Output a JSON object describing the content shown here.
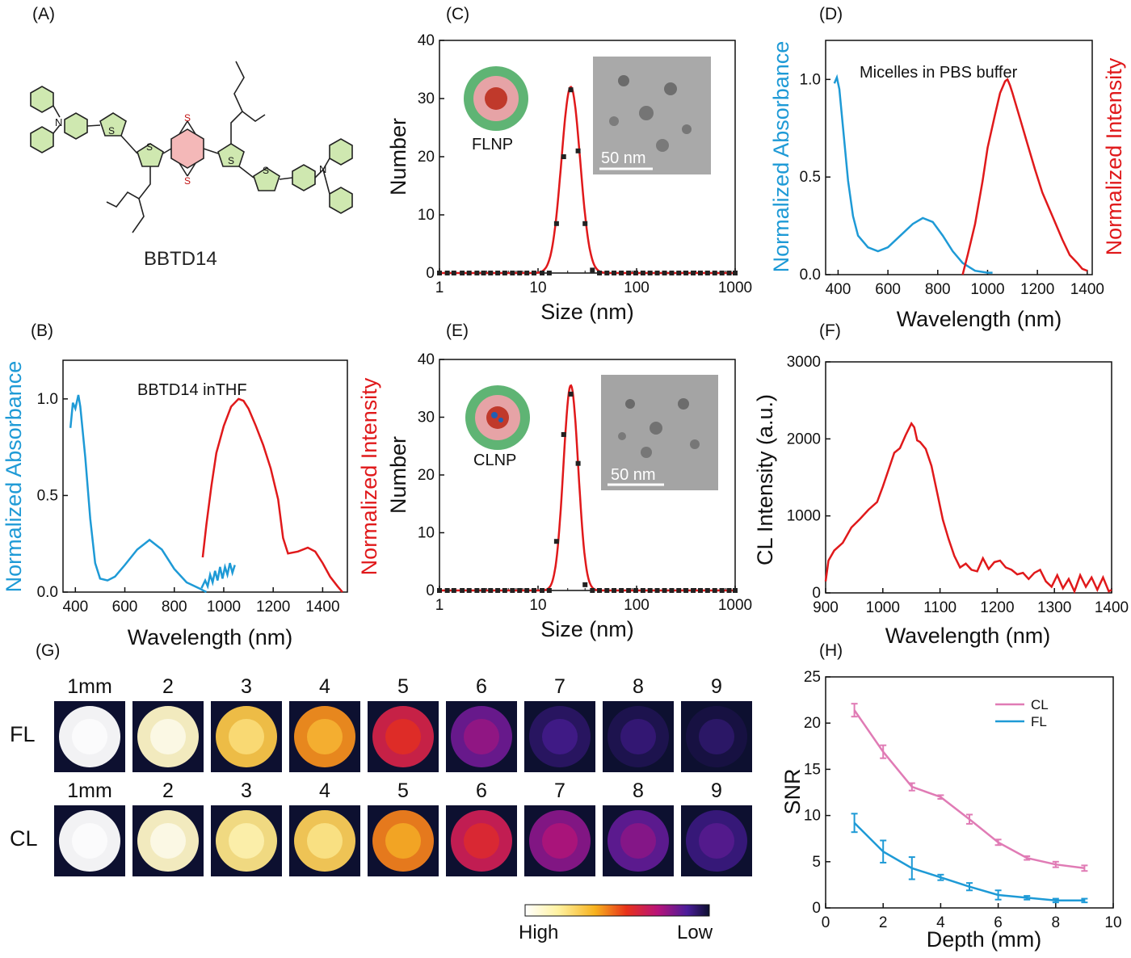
{
  "panel_labels": {
    "a": "(A)",
    "b": "(B)",
    "c": "(C)",
    "d": "(D)",
    "e": "(E)",
    "f": "(F)",
    "g": "(G)",
    "h": "(H)"
  },
  "molecule": {
    "name": "BBTD14",
    "atoms": {
      "N": "N",
      "S": "S"
    }
  },
  "colors": {
    "absorbance": "#1e9ad6",
    "emission": "#e0191b",
    "cl": "#e07bb5",
    "fl": "#1e9ad6",
    "dls_points": "#222222"
  },
  "chart_data": [
    {
      "id": "B",
      "type": "line",
      "title": "BBTD14 inTHF",
      "xlabel": "Wavelength (nm)",
      "ylabel_left": "Normalized Absorbance",
      "ylabel_right": "Normalized Intensity",
      "xlim": [
        350,
        1500
      ],
      "ylim": [
        0,
        1.2
      ],
      "xticks": [
        "400",
        "600",
        "800",
        "1000",
        "1200",
        "1400"
      ],
      "yticks": [
        "0.0",
        "0.5",
        "1.0"
      ],
      "series": [
        {
          "role": "absorbance",
          "x": [
            380,
            390,
            400,
            412,
            420,
            440,
            460,
            480,
            500,
            530,
            560,
            600,
            650,
            700,
            750,
            800,
            850,
            900,
            930
          ],
          "y": [
            0.85,
            0.98,
            0.95,
            1.02,
            0.96,
            0.7,
            0.38,
            0.15,
            0.07,
            0.06,
            0.08,
            0.14,
            0.22,
            0.27,
            0.22,
            0.12,
            0.05,
            0.02,
            0.0
          ]
        },
        {
          "role": "absorbance-noise",
          "x": [
            910,
            925,
            935,
            945,
            955,
            965,
            975,
            985,
            995,
            1005,
            1015,
            1025,
            1035,
            1045
          ],
          "y": [
            0.02,
            0.06,
            0.03,
            0.09,
            0.05,
            0.11,
            0.06,
            0.13,
            0.07,
            0.13,
            0.09,
            0.15,
            0.1,
            0.14
          ]
        },
        {
          "role": "emission",
          "x": [
            915,
            930,
            950,
            970,
            1000,
            1030,
            1060,
            1080,
            1100,
            1130,
            1160,
            1190,
            1220,
            1240,
            1260,
            1300,
            1340,
            1370,
            1400,
            1430,
            1460,
            1480
          ],
          "y": [
            0.18,
            0.35,
            0.55,
            0.72,
            0.86,
            0.96,
            1.0,
            0.99,
            0.95,
            0.86,
            0.76,
            0.64,
            0.48,
            0.28,
            0.2,
            0.21,
            0.23,
            0.21,
            0.15,
            0.08,
            0.03,
            0.0
          ]
        }
      ]
    },
    {
      "id": "C",
      "type": "scatter",
      "xlabel": "Size (nm)",
      "ylabel": "Number",
      "xscale": "log",
      "xlim": [
        1,
        1000
      ],
      "ylim": [
        0,
        40
      ],
      "xticks": [
        "1",
        "10",
        "100",
        "1000"
      ],
      "yticks": [
        "0",
        "10",
        "20",
        "30",
        "40"
      ],
      "particle_label": "FLNP",
      "scale_bar": "50 nm",
      "points_x": [
        1,
        1.2,
        1.4,
        1.7,
        2,
        2.4,
        2.8,
        3.3,
        3.9,
        4.6,
        5.5,
        6.5,
        7.7,
        9.1,
        11,
        13,
        15.4,
        18.2,
        21.5,
        25.5,
        30,
        35.6,
        42,
        50,
        59,
        70,
        83,
        98,
        116,
        137,
        162,
        192,
        227,
        268,
        317,
        375,
        444,
        525,
        621,
        735,
        869,
        1000
      ],
      "points_y": [
        0,
        0,
        0,
        0,
        0,
        0,
        0,
        0,
        0,
        0,
        0,
        0,
        0,
        0,
        0,
        0,
        8.5,
        20,
        31.5,
        21,
        8.5,
        0.5,
        0,
        0,
        0,
        0,
        0,
        0,
        0,
        0,
        0,
        0,
        0,
        0,
        0,
        0,
        0,
        0,
        0,
        0,
        0,
        0
      ],
      "fit": {
        "type": "lognormal",
        "peak_x": 21.5,
        "peak_y": 32,
        "width_log10": 0.095
      }
    },
    {
      "id": "D",
      "type": "line",
      "title": "Micelles in PBS buffer",
      "xlabel": "Wavelength (nm)",
      "ylabel_left": "Normalized Absorbance",
      "ylabel_right": "Normalized Intensity",
      "xlim": [
        350,
        1420
      ],
      "ylim": [
        0,
        1.2
      ],
      "xticks": [
        "400",
        "600",
        "800",
        "1000",
        "1200",
        "1400"
      ],
      "yticks": [
        "0.0",
        "0.5",
        "1.0"
      ],
      "series": [
        {
          "role": "absorbance",
          "x": [
            385,
            395,
            405,
            420,
            440,
            460,
            480,
            520,
            560,
            600,
            650,
            700,
            740,
            780,
            820,
            860,
            900,
            950,
            1000,
            1020
          ],
          "y": [
            0.98,
            1.01,
            0.95,
            0.75,
            0.48,
            0.3,
            0.2,
            0.14,
            0.12,
            0.14,
            0.2,
            0.26,
            0.29,
            0.27,
            0.2,
            0.12,
            0.06,
            0.02,
            0.01,
            0.01
          ]
        },
        {
          "role": "emission",
          "x": [
            900,
            920,
            950,
            980,
            1000,
            1030,
            1050,
            1070,
            1080,
            1090,
            1100,
            1130,
            1160,
            1190,
            1220,
            1260,
            1300,
            1330,
            1360,
            1380,
            1400
          ],
          "y": [
            0.0,
            0.1,
            0.26,
            0.48,
            0.65,
            0.82,
            0.93,
            0.99,
            1.0,
            0.97,
            0.93,
            0.8,
            0.67,
            0.54,
            0.42,
            0.3,
            0.18,
            0.1,
            0.06,
            0.03,
            0.02
          ]
        }
      ]
    },
    {
      "id": "E",
      "type": "scatter",
      "xlabel": "Size (nm)",
      "ylabel": "Number",
      "xscale": "log",
      "xlim": [
        1,
        1000
      ],
      "ylim": [
        0,
        40
      ],
      "xticks": [
        "1",
        "10",
        "100",
        "1000"
      ],
      "yticks": [
        "0",
        "10",
        "20",
        "30",
        "40"
      ],
      "particle_label": "CLNP",
      "scale_bar": "50 nm",
      "points_x": [
        1,
        1.2,
        1.4,
        1.7,
        2,
        2.4,
        2.8,
        3.3,
        3.9,
        4.6,
        5.5,
        6.5,
        7.7,
        9.1,
        11,
        13,
        15.4,
        18.2,
        21.5,
        25.5,
        30,
        35.6,
        42,
        50,
        59,
        70,
        83,
        98,
        116,
        137,
        162,
        192,
        227,
        268,
        317,
        375,
        444,
        525,
        621,
        735,
        869,
        1000
      ],
      "points_y": [
        0,
        0,
        0,
        0,
        0,
        0,
        0,
        0,
        0,
        0,
        0,
        0,
        0,
        0,
        0,
        0,
        8.5,
        27,
        34,
        22,
        1,
        0,
        0,
        0,
        0,
        0,
        0,
        0,
        0,
        0,
        0,
        0,
        0,
        0,
        0,
        0,
        0,
        0,
        0,
        0,
        0,
        0
      ],
      "fit": {
        "type": "lognormal",
        "peak_x": 21.5,
        "peak_y": 35.5,
        "width_log10": 0.075
      }
    },
    {
      "id": "F",
      "type": "line",
      "xlabel": "Wavelength (nm)",
      "ylabel": "CL Intensity (a.u.)",
      "xlim": [
        900,
        1400
      ],
      "ylim": [
        0,
        3000
      ],
      "xticks": [
        "900",
        "1000",
        "1100",
        "1200",
        "1300",
        "1400"
      ],
      "yticks": [
        "0",
        "1000",
        "2000",
        "3000"
      ],
      "series": [
        {
          "role": "cl",
          "x": [
            900,
            905,
            915,
            930,
            945,
            960,
            975,
            990,
            1000,
            1010,
            1020,
            1030,
            1040,
            1050,
            1055,
            1060,
            1065,
            1075,
            1085,
            1095,
            1105,
            1115,
            1125,
            1135,
            1145,
            1155,
            1165,
            1175,
            1185,
            1195,
            1205,
            1215,
            1225,
            1235,
            1245,
            1255,
            1265,
            1275,
            1285,
            1295,
            1305,
            1315,
            1325,
            1335,
            1345,
            1355,
            1365,
            1375,
            1385,
            1395,
            1400
          ],
          "y": [
            150,
            420,
            550,
            650,
            850,
            960,
            1080,
            1180,
            1380,
            1600,
            1820,
            1880,
            2050,
            2200,
            2150,
            1980,
            1960,
            1870,
            1650,
            1300,
            950,
            700,
            480,
            330,
            380,
            300,
            280,
            450,
            310,
            400,
            420,
            330,
            300,
            240,
            260,
            180,
            260,
            300,
            150,
            80,
            230,
            60,
            180,
            20,
            230,
            80,
            200,
            40,
            200,
            20,
            40
          ]
        }
      ]
    },
    {
      "id": "H",
      "type": "line",
      "xlabel": "Depth (mm)",
      "ylabel": "SNR",
      "xlim": [
        0,
        10
      ],
      "ylim": [
        0,
        25
      ],
      "xticks": [
        "0",
        "2",
        "4",
        "6",
        "8",
        "10"
      ],
      "yticks": [
        "0",
        "5",
        "10",
        "15",
        "20",
        "25"
      ],
      "legend": "top-right",
      "series": [
        {
          "name": "CL",
          "x": [
            1,
            2,
            3,
            4,
            5,
            6,
            7,
            8,
            9
          ],
          "y": [
            21.4,
            16.9,
            13.1,
            12.0,
            9.6,
            7.1,
            5.4,
            4.7,
            4.3
          ],
          "err": [
            0.7,
            0.7,
            0.4,
            0.2,
            0.5,
            0.3,
            0.2,
            0.3,
            0.3
          ]
        },
        {
          "name": "FL",
          "x": [
            1,
            2,
            3,
            4,
            5,
            6,
            7,
            8,
            9
          ],
          "y": [
            9.2,
            6.1,
            4.3,
            3.3,
            2.3,
            1.4,
            1.1,
            0.8,
            0.8
          ],
          "err": [
            1.0,
            1.2,
            1.2,
            0.3,
            0.4,
            0.5,
            0.2,
            0.2,
            0.2
          ]
        }
      ]
    }
  ],
  "imaging": {
    "depth_labels": [
      "1mm",
      "2",
      "3",
      "4",
      "5",
      "6",
      "7",
      "8",
      "9"
    ],
    "rows": [
      {
        "label": "FL",
        "intensity": [
          1.0,
          0.9,
          0.72,
          0.62,
          0.42,
          0.22,
          0.08,
          0.05,
          0.03
        ]
      },
      {
        "label": "CL",
        "intensity": [
          1.0,
          0.9,
          0.8,
          0.74,
          0.6,
          0.4,
          0.26,
          0.2,
          0.12
        ]
      }
    ],
    "colorbar": {
      "high": "High",
      "low": "Low"
    }
  }
}
